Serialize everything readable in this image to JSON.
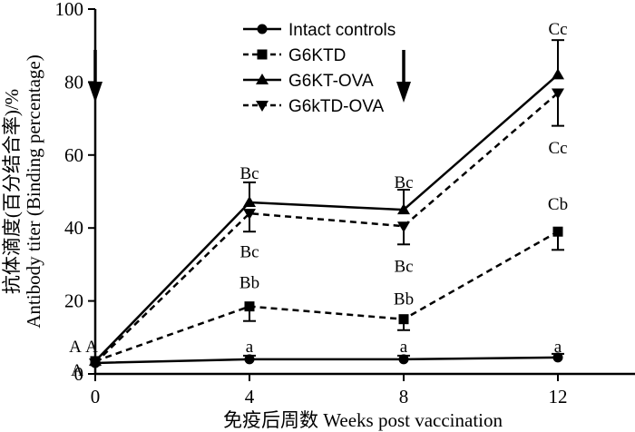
{
  "chart_data": {
    "type": "line",
    "xlabel": "免疫后周数 Weeks post vaccination",
    "ylabel_line1": "抗体滴度(百分结合率)/%",
    "ylabel_line2": "Antibody titer (Binding percentage)",
    "x": [
      0,
      4,
      8,
      12
    ],
    "xlim": [
      0,
      14
    ],
    "ylim": [
      0,
      100
    ],
    "xticks": [
      0,
      4,
      8,
      12
    ],
    "yticks": [
      0,
      20,
      40,
      60,
      80,
      100
    ],
    "grid": false,
    "legend_position": "top-center",
    "series": [
      {
        "name": "Intact controls",
        "marker": "circle",
        "dash": "solid",
        "values": [
          3,
          4,
          4,
          4.5
        ],
        "errors": [
          0,
          1,
          1,
          1
        ]
      },
      {
        "name": "G6KTD",
        "marker": "square",
        "dash": "dashed",
        "values": [
          3.5,
          18.5,
          15,
          39
        ],
        "errors": [
          0,
          4,
          3,
          5
        ]
      },
      {
        "name": "G6KT-OVA",
        "marker": "triangle-up",
        "dash": "solid",
        "values": [
          3.5,
          47,
          45,
          82
        ],
        "errors": [
          0,
          5.5,
          5.5,
          9.5
        ]
      },
      {
        "name": "G6kTD-OVA",
        "marker": "triangle-down",
        "dash": "dashed",
        "values": [
          3,
          44,
          40.5,
          77
        ],
        "errors": [
          0,
          5,
          5,
          9
        ]
      }
    ],
    "arrows_at_weeks": [
      0,
      8
    ],
    "annotations": [
      {
        "text": "A",
        "x": 0,
        "y": 7.5,
        "dx": -22
      },
      {
        "text": "A",
        "x": 0,
        "y": 7.5,
        "dx": -4
      },
      {
        "text": "A",
        "x": 0,
        "y": 1,
        "dx": -20
      },
      {
        "text": "Bc",
        "x": 4,
        "y": 55,
        "dx": 0
      },
      {
        "text": "Bc",
        "x": 4,
        "y": 33.5,
        "dx": 0
      },
      {
        "text": "Bb",
        "x": 4,
        "y": 25,
        "dx": 0
      },
      {
        "text": "a",
        "x": 4,
        "y": 7.5,
        "dx": 0
      },
      {
        "text": "Bc",
        "x": 8,
        "y": 52.5,
        "dx": 0
      },
      {
        "text": "Bc",
        "x": 8,
        "y": 29.5,
        "dx": 0
      },
      {
        "text": "Bb",
        "x": 8,
        "y": 20.5,
        "dx": 0
      },
      {
        "text": "a",
        "x": 8,
        "y": 7.5,
        "dx": 0
      },
      {
        "text": "Cc",
        "x": 12,
        "y": 94.5,
        "dx": 0
      },
      {
        "text": "Cc",
        "x": 12,
        "y": 62,
        "dx": 0
      },
      {
        "text": "Cb",
        "x": 12,
        "y": 46.5,
        "dx": 0
      },
      {
        "text": "a",
        "x": 12,
        "y": 7.5,
        "dx": 0
      }
    ]
  }
}
